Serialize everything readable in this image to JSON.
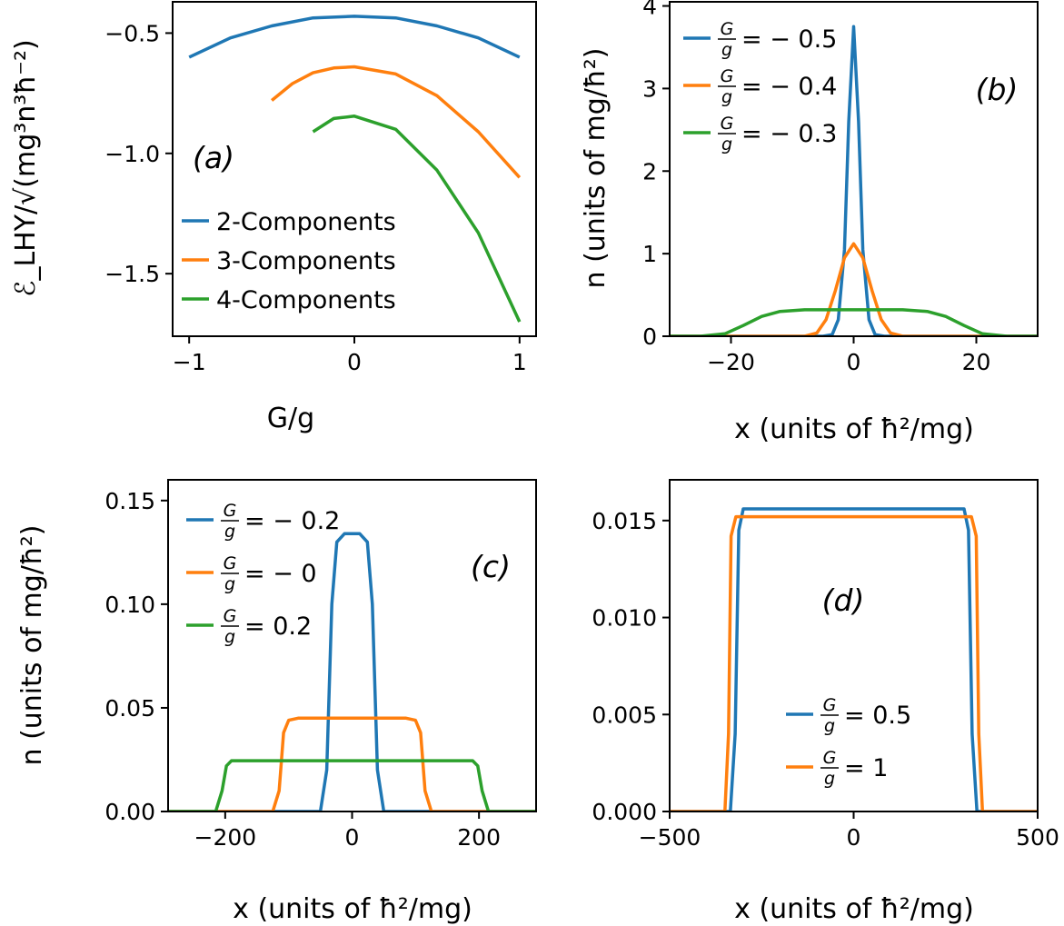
{
  "colors": {
    "c0": "#1f77b4",
    "c1": "#ff7f0e",
    "c2": "#2ca02c"
  },
  "chart_data": [
    {
      "id": "a",
      "type": "line",
      "panel_label": "(a)",
      "xlabel": "G/g",
      "ylabel": "ℰ_LHY/√(mg³n³ħ⁻²)",
      "xlim": [
        -1.1,
        1.1
      ],
      "ylim": [
        -1.76,
        -0.37
      ],
      "xticks": [
        -1,
        0,
        1
      ],
      "xtick_labels": [
        "−1",
        "0",
        "1"
      ],
      "yticks": [
        -0.5,
        -1.0,
        -1.5
      ],
      "ytick_labels": [
        "−0.5",
        "−1.0",
        "−1.5"
      ],
      "legend": {
        "placement": "lower-left"
      },
      "series": [
        {
          "name": "2-Components",
          "color": "c0",
          "x": [
            -1,
            -0.75,
            -0.5,
            -0.25,
            0,
            0.25,
            0.5,
            0.75,
            1
          ],
          "y": [
            -0.6,
            -0.52,
            -0.47,
            -0.437,
            -0.43,
            -0.437,
            -0.47,
            -0.52,
            -0.6
          ]
        },
        {
          "name": "3-Components",
          "color": "c1",
          "x": [
            -0.5,
            -0.375,
            -0.25,
            -0.125,
            0,
            0.25,
            0.5,
            0.75,
            1
          ],
          "y": [
            -0.78,
            -0.71,
            -0.665,
            -0.645,
            -0.64,
            -0.67,
            -0.76,
            -0.91,
            -1.1
          ]
        },
        {
          "name": "4-Components",
          "color": "c2",
          "x": [
            -0.25,
            -0.125,
            0,
            0.25,
            0.5,
            0.75,
            1
          ],
          "y": [
            -0.91,
            -0.855,
            -0.845,
            -0.9,
            -1.07,
            -1.33,
            -1.7
          ]
        }
      ]
    },
    {
      "id": "b",
      "type": "line",
      "panel_label": "(b)",
      "xlabel": "x (units of ħ²/mg)",
      "ylabel": "n (units of mg/ħ²)",
      "xlim": [
        -30,
        30
      ],
      "ylim": [
        0,
        4.05
      ],
      "xticks": [
        -20,
        0,
        20
      ],
      "xtick_labels": [
        "−20",
        "0",
        "20"
      ],
      "yticks": [
        0,
        1,
        2,
        3,
        4
      ],
      "ytick_labels": [
        "0",
        "1",
        "2",
        "3",
        "4"
      ],
      "legend": {
        "placement": "top-left"
      },
      "series": [
        {
          "name": "= − 0.5",
          "fraction": [
            "G",
            "g"
          ],
          "color": "c0",
          "x": [
            -30,
            -5,
            -3.5,
            -2.5,
            -1.5,
            -0.8,
            0,
            0.8,
            1.5,
            2.5,
            3.5,
            5,
            30
          ],
          "y": [
            0,
            0,
            0.02,
            0.2,
            1.05,
            2.6,
            3.75,
            2.6,
            1.05,
            0.2,
            0.02,
            0,
            0
          ]
        },
        {
          "name": "= − 0.4",
          "fraction": [
            "G",
            "g"
          ],
          "color": "c1",
          "x": [
            -30,
            -8,
            -6,
            -4.5,
            -3,
            -1.5,
            0,
            1.5,
            3,
            4.5,
            6,
            8,
            30
          ],
          "y": [
            0,
            0,
            0.04,
            0.2,
            0.55,
            0.95,
            1.12,
            0.95,
            0.55,
            0.2,
            0.04,
            0,
            0
          ]
        },
        {
          "name": "= − 0.3",
          "fraction": [
            "G",
            "g"
          ],
          "color": "c2",
          "x": [
            -30,
            -25,
            -21,
            -18,
            -15,
            -12,
            -8,
            0,
            8,
            12,
            15,
            18,
            21,
            25,
            30
          ],
          "y": [
            0,
            0,
            0.03,
            0.13,
            0.24,
            0.3,
            0.32,
            0.32,
            0.32,
            0.3,
            0.24,
            0.13,
            0.03,
            0,
            0
          ]
        }
      ]
    },
    {
      "id": "c",
      "type": "line",
      "panel_label": "(c)",
      "xlabel": "x (units of ħ²/mg)",
      "ylabel": "n (units of mg/ħ²)",
      "xlim": [
        -290,
        290
      ],
      "ylim": [
        0,
        0.16
      ],
      "xticks": [
        -200,
        0,
        200
      ],
      "xtick_labels": [
        "−200",
        "0",
        "200"
      ],
      "yticks": [
        0,
        0.05,
        0.1,
        0.15
      ],
      "ytick_labels": [
        "0.00",
        "0.05",
        "0.10",
        "0.15"
      ],
      "legend": {
        "placement": "top-left"
      },
      "series": [
        {
          "name": "= − 0.2",
          "fraction": [
            "G",
            "g"
          ],
          "color": "c0",
          "x": [
            -290,
            -50,
            -40,
            -32,
            -24,
            -12,
            0,
            12,
            24,
            32,
            40,
            50,
            290
          ],
          "y": [
            0,
            0,
            0.02,
            0.1,
            0.13,
            0.134,
            0.134,
            0.134,
            0.13,
            0.1,
            0.02,
            0,
            0
          ]
        },
        {
          "name": "= − 0",
          "fraction": [
            "G",
            "g"
          ],
          "color": "c1",
          "x": [
            -290,
            -125,
            -115,
            -108,
            -100,
            -85,
            0,
            85,
            100,
            108,
            115,
            125,
            290
          ],
          "y": [
            0,
            0,
            0.01,
            0.038,
            0.044,
            0.045,
            0.045,
            0.045,
            0.044,
            0.038,
            0.01,
            0,
            0
          ]
        },
        {
          "name": "= 0.2",
          "fraction": [
            "G",
            "g"
          ],
          "color": "c2",
          "x": [
            -290,
            -215,
            -205,
            -198,
            -190,
            -170,
            0,
            170,
            190,
            198,
            205,
            215,
            290
          ],
          "y": [
            0,
            0,
            0.01,
            0.022,
            0.0245,
            0.0245,
            0.0245,
            0.0245,
            0.0245,
            0.022,
            0.01,
            0,
            0
          ]
        }
      ]
    },
    {
      "id": "d",
      "type": "line",
      "panel_label": "(d)",
      "xlabel": "x (units of ħ²/mg)",
      "ylabel": "",
      "xlim": [
        -500,
        500
      ],
      "ylim": [
        0,
        0.0171
      ],
      "xticks": [
        -500,
        0,
        500
      ],
      "xtick_labels": [
        "−500",
        "0",
        "500"
      ],
      "yticks": [
        0,
        0.005,
        0.01,
        0.015
      ],
      "ytick_labels": [
        "0.000",
        "0.005",
        "0.010",
        "0.015"
      ],
      "legend": {
        "placement": "lower-center"
      },
      "series": [
        {
          "name": "= 0.5",
          "fraction": [
            "G",
            "g"
          ],
          "color": "c0",
          "x": [
            -500,
            -335,
            -322,
            -312,
            -300,
            -250,
            0,
            250,
            300,
            312,
            322,
            335,
            500
          ],
          "y": [
            0,
            0,
            0.004,
            0.0145,
            0.0156,
            0.0156,
            0.0156,
            0.0156,
            0.0156,
            0.0145,
            0.004,
            0,
            0
          ]
        },
        {
          "name": "= 1",
          "fraction": [
            "G",
            "g"
          ],
          "color": "c1",
          "x": [
            -500,
            -350,
            -340,
            -333,
            -320,
            -250,
            0,
            250,
            320,
            333,
            340,
            350,
            500
          ],
          "y": [
            0,
            0,
            0.004,
            0.0142,
            0.0152,
            0.0152,
            0.0152,
            0.0152,
            0.0152,
            0.0142,
            0.004,
            0,
            0
          ]
        }
      ]
    }
  ]
}
